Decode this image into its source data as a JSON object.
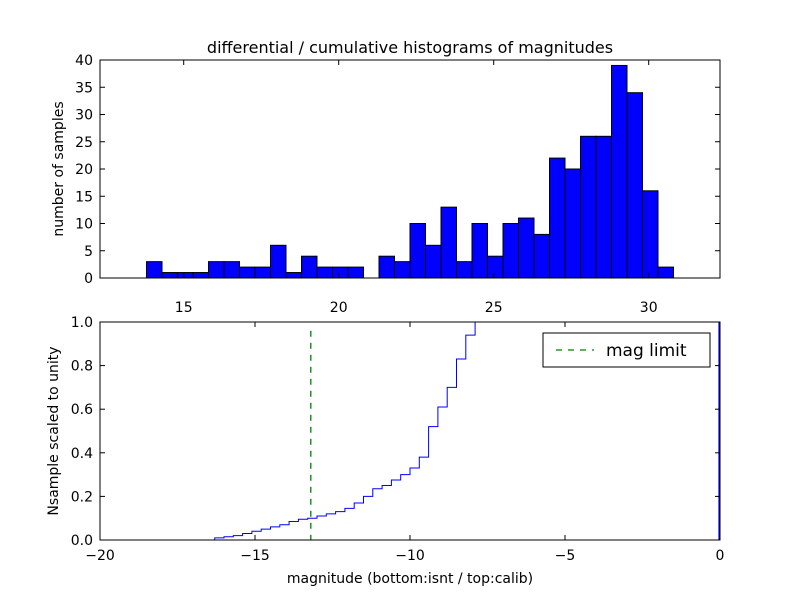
{
  "chart_data": [
    {
      "type": "bar",
      "title": "differential / cumulative histograms of magnitudes",
      "xlabel": "",
      "ylabel": "number of samples",
      "xlim": [
        12.3,
        32.3
      ],
      "ylim": [
        0,
        40
      ],
      "x_ticks": [
        15,
        20,
        25,
        30
      ],
      "y_ticks": [
        0,
        5,
        10,
        15,
        20,
        25,
        30,
        35,
        40
      ],
      "bin_width": 0.5,
      "bin_starts": [
        13.8,
        14.3,
        14.8,
        15.3,
        15.8,
        16.3,
        16.8,
        17.3,
        17.8,
        18.3,
        18.8,
        19.3,
        19.8,
        20.3,
        20.8,
        21.3,
        21.8,
        22.3,
        22.8,
        23.3,
        23.8,
        24.3,
        24.8,
        25.3,
        25.8,
        26.3,
        26.8,
        27.3,
        27.8,
        28.3,
        28.8,
        29.3,
        29.8,
        30.3
      ],
      "values": [
        3,
        1,
        1,
        1,
        3,
        3,
        2,
        2,
        6,
        1,
        4,
        2,
        2,
        2,
        0,
        4,
        3,
        10,
        6,
        13,
        3,
        10,
        4,
        10,
        11,
        8,
        22,
        20,
        26,
        26,
        39,
        34,
        16,
        2
      ],
      "bar_color": "#0000ff",
      "grid": false
    },
    {
      "type": "line",
      "title": "",
      "xlabel": "magnitude (bottom:isnt / top:calib)",
      "ylabel": "Nsample scaled to unity",
      "xlim": [
        -20,
        0
      ],
      "ylim": [
        0,
        1.0
      ],
      "x_ticks": [
        -20,
        -15,
        -10,
        -5,
        0
      ],
      "x_tick_labels": [
        "−20",
        "−15",
        "−10",
        "−5",
        "0"
      ],
      "y_ticks": [
        0.0,
        0.2,
        0.4,
        0.6,
        0.8,
        1.0
      ],
      "y_tick_labels": [
        "0.0",
        "0.2",
        "0.4",
        "0.6",
        "0.8",
        "1.0"
      ],
      "step_x": [
        -20,
        -16.3,
        -16.0,
        -15.7,
        -15.4,
        -15.1,
        -14.8,
        -14.5,
        -14.2,
        -13.9,
        -13.6,
        -13.3,
        -13.0,
        -12.7,
        -12.4,
        -12.1,
        -11.8,
        -11.5,
        -11.2,
        -10.9,
        -10.6,
        -10.3,
        -10.0,
        -9.7,
        -9.4,
        -9.1,
        -8.8,
        -8.5,
        -8.2,
        -7.9,
        0
      ],
      "step_y": [
        0.0,
        0.01,
        0.015,
        0.02,
        0.03,
        0.04,
        0.05,
        0.06,
        0.07,
        0.085,
        0.095,
        0.1,
        0.11,
        0.12,
        0.13,
        0.145,
        0.17,
        0.2,
        0.235,
        0.25,
        0.275,
        0.3,
        0.33,
        0.38,
        0.52,
        0.61,
        0.7,
        0.83,
        0.94,
        1.0,
        1.0
      ],
      "line_color": "#0000ff",
      "mag_limit": -13.2,
      "mag_limit_color": "#008000",
      "legend": {
        "entries": [
          "mag limit"
        ],
        "placement": "upper right"
      },
      "grid": false
    }
  ]
}
